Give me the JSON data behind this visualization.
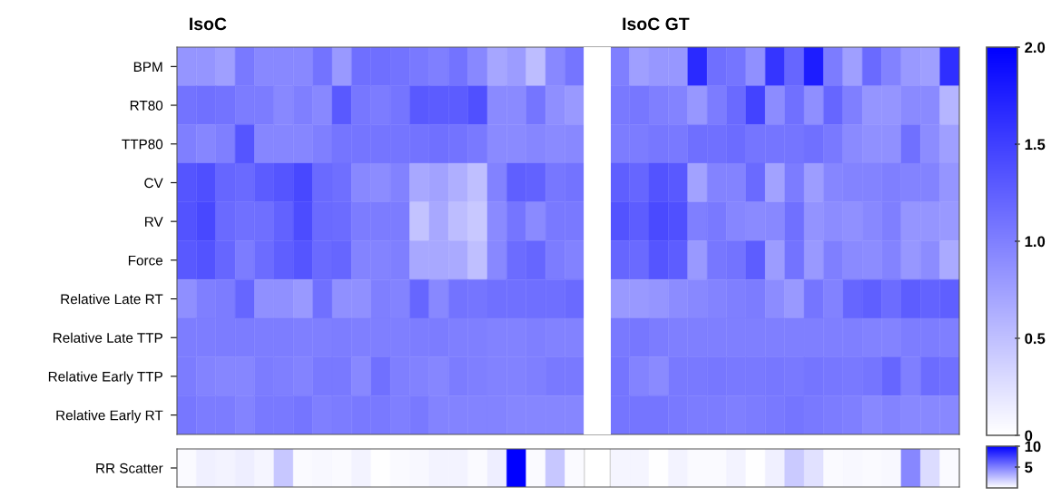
{
  "chart_data": [
    {
      "type": "heatmap",
      "annotations": [
        "IsoC",
        "IsoC GT"
      ],
      "categories": [
        null,
        null,
        null,
        null,
        null,
        null,
        null,
        null,
        null,
        null,
        null,
        null,
        null,
        null,
        null,
        null,
        null,
        null,
        null,
        null,
        null,
        null,
        null,
        null,
        null,
        null,
        null,
        null,
        null,
        null,
        null,
        null,
        null,
        null,
        null,
        null,
        null,
        null,
        null,
        null
      ],
      "y_categories": [
        "BPM",
        "RT80",
        "TTP80",
        "CV",
        "RV",
        "Force",
        "Relative Late RT",
        "Relative Late TTP",
        "Relative Early TTP",
        "Relative Early RT"
      ],
      "cells": [
        [
          0.83,
          0.83,
          0.75,
          1.05,
          0.93,
          0.93,
          0.93,
          1.1,
          0.8,
          1.13,
          1.13,
          1.1,
          1.05,
          1.0,
          1.1,
          0.93,
          0.7,
          0.78,
          0.52,
          0.93,
          1.08,
          null,
          1.0,
          0.75,
          0.82,
          0.82,
          1.67,
          1.13,
          1.08,
          0.87,
          1.58,
          1.2,
          1.77,
          1.03,
          0.75,
          1.17,
          0.98,
          0.8,
          0.75,
          1.63
        ],
        [
          1.1,
          1.12,
          1.1,
          1.03,
          1.03,
          0.93,
          1.0,
          0.93,
          1.3,
          1.07,
          1.03,
          1.08,
          1.3,
          1.28,
          1.28,
          1.37,
          0.92,
          0.92,
          1.08,
          0.88,
          0.8,
          null,
          1.05,
          1.07,
          1.0,
          0.97,
          0.82,
          1.03,
          1.17,
          1.47,
          0.9,
          1.12,
          0.88,
          1.2,
          1.0,
          0.83,
          0.83,
          0.92,
          0.92,
          0.58
        ],
        [
          1.0,
          0.95,
          1.0,
          1.33,
          0.95,
          0.95,
          0.95,
          1.0,
          1.08,
          1.08,
          1.08,
          1.08,
          1.1,
          1.12,
          1.1,
          1.05,
          0.92,
          0.92,
          0.95,
          0.92,
          0.93,
          null,
          1.03,
          1.03,
          1.07,
          1.05,
          1.13,
          1.12,
          1.15,
          1.08,
          1.08,
          1.08,
          1.12,
          1.05,
          0.92,
          0.87,
          0.87,
          1.12,
          0.9,
          0.75
        ],
        [
          1.33,
          1.38,
          1.2,
          1.17,
          1.28,
          1.33,
          1.43,
          1.17,
          1.13,
          0.93,
          0.9,
          0.98,
          0.68,
          0.73,
          0.63,
          0.5,
          0.98,
          1.25,
          1.23,
          1.07,
          1.1,
          null,
          1.25,
          1.2,
          1.35,
          1.3,
          0.73,
          0.97,
          0.97,
          1.17,
          0.73,
          1.03,
          0.77,
          0.95,
          0.97,
          0.97,
          1.0,
          0.97,
          0.97,
          0.83
        ],
        [
          1.35,
          1.43,
          1.17,
          1.12,
          1.13,
          1.23,
          1.4,
          1.17,
          1.15,
          1.03,
          1.03,
          1.03,
          0.47,
          0.68,
          0.52,
          0.43,
          0.92,
          1.08,
          0.92,
          1.05,
          1.05,
          null,
          1.35,
          1.27,
          1.42,
          1.37,
          1.0,
          1.05,
          0.95,
          0.92,
          0.93,
          1.12,
          0.85,
          0.9,
          0.87,
          0.93,
          1.0,
          0.83,
          0.83,
          0.8
        ],
        [
          1.3,
          1.35,
          1.2,
          1.03,
          1.15,
          1.25,
          1.33,
          1.17,
          1.2,
          0.97,
          0.97,
          1.0,
          0.68,
          0.68,
          0.67,
          0.5,
          0.93,
          1.15,
          1.2,
          1.03,
          0.98,
          null,
          1.2,
          1.17,
          1.33,
          1.27,
          0.8,
          1.07,
          1.1,
          1.27,
          0.78,
          1.1,
          0.8,
          1.0,
          0.92,
          0.9,
          0.97,
          0.82,
          0.9,
          0.67
        ],
        [
          0.88,
          1.0,
          1.03,
          1.2,
          0.87,
          0.87,
          0.8,
          1.12,
          0.87,
          0.87,
          1.0,
          0.97,
          1.2,
          0.93,
          1.1,
          1.08,
          1.12,
          1.12,
          1.13,
          1.13,
          1.17,
          null,
          0.8,
          0.8,
          0.83,
          0.9,
          0.93,
          0.97,
          1.0,
          1.03,
          0.9,
          0.8,
          1.08,
          0.98,
          1.2,
          1.25,
          1.15,
          1.27,
          1.22,
          1.25
        ],
        [
          1.02,
          1.02,
          1.03,
          1.03,
          1.02,
          1.02,
          1.0,
          1.0,
          1.02,
          1.0,
          1.0,
          1.0,
          1.02,
          1.03,
          1.0,
          1.0,
          0.98,
          0.98,
          1.0,
          0.98,
          0.98,
          null,
          1.05,
          1.07,
          1.03,
          1.0,
          1.0,
          1.0,
          1.0,
          1.0,
          1.0,
          1.0,
          1.0,
          1.0,
          1.0,
          0.98,
          0.97,
          1.02,
          1.02,
          1.0
        ],
        [
          1.03,
          0.97,
          0.95,
          0.95,
          1.03,
          1.0,
          0.97,
          1.05,
          1.05,
          0.93,
          1.12,
          1.0,
          0.98,
          0.95,
          1.03,
          1.0,
          0.98,
          0.98,
          1.0,
          1.05,
          1.05,
          null,
          1.08,
          0.97,
          0.92,
          1.05,
          1.05,
          1.07,
          1.05,
          1.05,
          1.07,
          1.05,
          1.08,
          1.07,
          1.05,
          1.08,
          1.2,
          1.0,
          1.15,
          1.12
        ],
        [
          1.07,
          1.03,
          1.03,
          0.97,
          1.05,
          1.05,
          1.08,
          1.0,
          1.03,
          1.05,
          1.05,
          1.0,
          1.05,
          0.97,
          0.97,
          0.97,
          0.97,
          0.95,
          0.95,
          0.95,
          0.95,
          null,
          1.08,
          1.08,
          1.08,
          1.05,
          1.03,
          1.03,
          1.0,
          1.03,
          1.05,
          1.08,
          1.05,
          1.03,
          1.0,
          0.93,
          0.97,
          0.93,
          0.93,
          0.93
        ]
      ],
      "clim": [
        0,
        2
      ],
      "cticks": [
        0,
        0.5,
        {
          "value": 1,
          "label": "1.0"
        },
        1.5,
        {
          "value": 2,
          "label": "2.0"
        }
      ]
    },
    {
      "type": "heatmap",
      "categories": [
        null,
        null,
        null,
        null,
        null,
        null,
        null,
        null,
        null,
        null,
        null,
        null,
        null,
        null,
        null,
        null,
        null,
        null,
        null,
        null,
        null,
        null,
        null,
        null,
        null,
        null,
        null,
        null,
        null,
        null,
        null,
        null,
        null,
        null,
        null,
        null,
        null,
        null,
        null,
        null
      ],
      "y_categories": [
        "RR Scatter"
      ],
      "cells": [
        [
          0.2,
          0.6,
          0.5,
          0.7,
          0.4,
          2.2,
          0.2,
          0.3,
          0.2,
          0.5,
          0.05,
          0.2,
          0.3,
          0.5,
          0.5,
          0.2,
          0.7,
          10,
          0.2,
          2.2,
          0.2,
          null,
          0.4,
          0.4,
          0.05,
          0.5,
          0.2,
          0.2,
          0.5,
          0.05,
          0.6,
          2.1,
          1.2,
          0.2,
          0.3,
          0.2,
          0.3,
          4.7,
          1.4,
          0.2
        ]
      ],
      "clim": [
        0,
        10
      ],
      "cticks": [
        5,
        10
      ]
    }
  ]
}
